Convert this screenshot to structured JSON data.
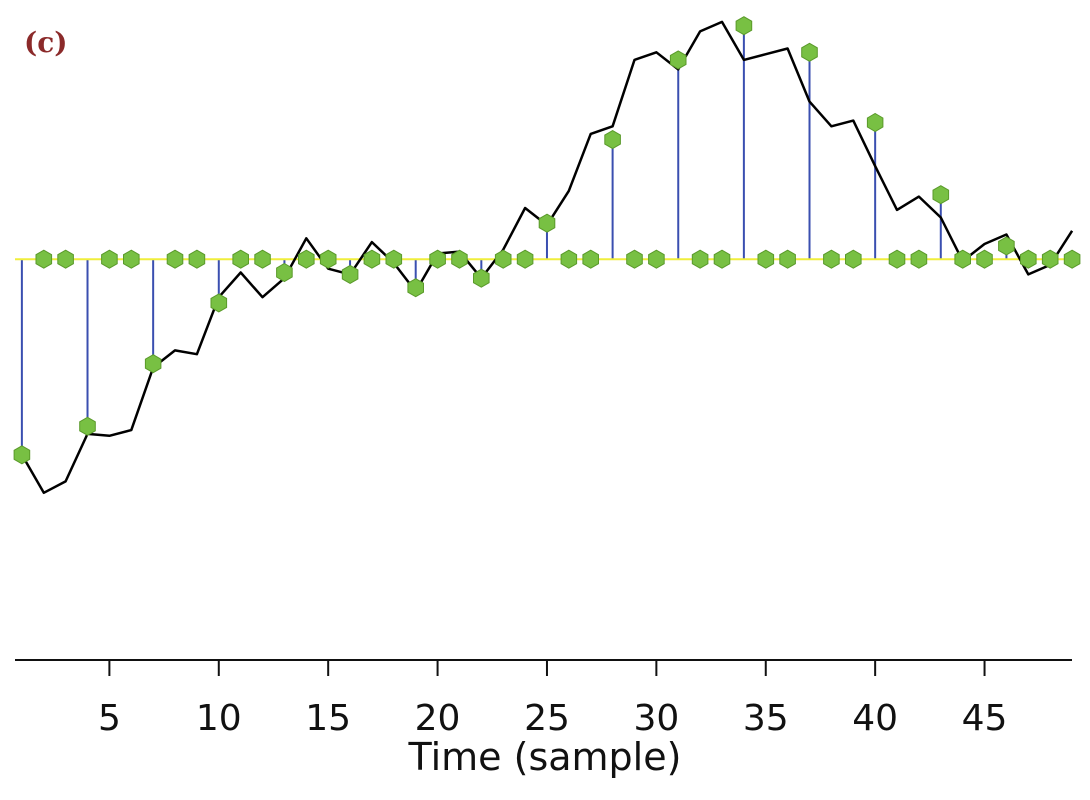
{
  "panel_label": "(c)",
  "chart_data": {
    "type": "line",
    "title": "",
    "xlabel": "Time (sample)",
    "ylabel": "",
    "xlim": [
      0,
      49.5
    ],
    "ylim": [
      -1.7,
      1.26
    ],
    "xticks": [
      5,
      10,
      15,
      20,
      25,
      30,
      35,
      40,
      45
    ],
    "baseline": 0,
    "grid": false,
    "legend": "none",
    "colors": {
      "signal": "#000000",
      "baseline": "#f0ee3c",
      "stems": "#3a4fb0",
      "markers": "#78c043",
      "marker_edge": "#5a9a2a"
    },
    "series": [
      {
        "role": "signal",
        "x": [
          1,
          2,
          3,
          4,
          5,
          6,
          7,
          8,
          9,
          10,
          11,
          12,
          13,
          14,
          15,
          16,
          17,
          18,
          19,
          20,
          21,
          22,
          23,
          24,
          25,
          26,
          27,
          28,
          29,
          30,
          31,
          32,
          33,
          34,
          35,
          36,
          37,
          38,
          39,
          40,
          41,
          42,
          43,
          44,
          45,
          46,
          47,
          48,
          49
        ],
        "y": [
          -1.03,
          -1.23,
          -1.17,
          -0.92,
          -0.93,
          -0.9,
          -0.57,
          -0.48,
          -0.5,
          -0.2,
          -0.07,
          -0.2,
          -0.1,
          0.11,
          -0.05,
          -0.08,
          0.09,
          -0.02,
          -0.17,
          0.03,
          0.04,
          -0.1,
          0.05,
          0.27,
          0.18,
          0.36,
          0.66,
          0.7,
          1.05,
          1.09,
          1.0,
          1.2,
          1.25,
          1.05,
          1.08,
          1.11,
          0.83,
          0.7,
          0.73,
          0.49,
          0.26,
          0.33,
          0.22,
          -0.01,
          0.08,
          0.13,
          -0.08,
          -0.03,
          0.15
        ]
      },
      {
        "role": "samples",
        "x": [
          1,
          2,
          3,
          4,
          5,
          6,
          7,
          8,
          9,
          10,
          11,
          12,
          13,
          14,
          15,
          16,
          17,
          18,
          19,
          20,
          21,
          22,
          23,
          24,
          25,
          26,
          27,
          28,
          29,
          30,
          31,
          32,
          33,
          34,
          35,
          36,
          37,
          38,
          39,
          40,
          41,
          42,
          43,
          44,
          45,
          46,
          47,
          48,
          49
        ],
        "y": [
          -1.03,
          0,
          0,
          -0.88,
          0,
          0,
          -0.55,
          0,
          0,
          -0.23,
          0,
          0,
          -0.07,
          0,
          0,
          -0.08,
          0,
          0,
          -0.15,
          0,
          0,
          -0.1,
          0,
          0,
          0.19,
          0,
          0,
          0.63,
          0,
          0,
          1.05,
          0,
          0,
          1.23,
          0,
          0,
          1.09,
          0,
          0,
          0.72,
          0,
          0,
          0.34,
          0,
          0,
          0.07,
          0,
          0,
          0
        ]
      }
    ]
  }
}
